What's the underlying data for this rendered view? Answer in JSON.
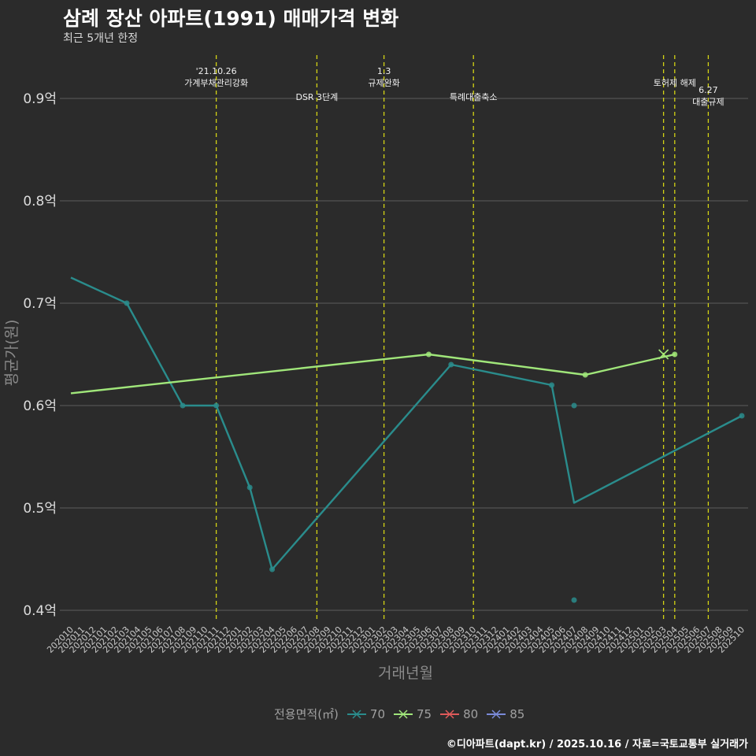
{
  "chart_data": {
    "type": "line",
    "title": "삼례 장산 아파트(1991) 매매가격 변화",
    "subtitle": "최근 5개년 한정",
    "xlabel": "거래년월",
    "ylabel": "평균가(원)",
    "ylim": [
      0.39,
      0.95
    ],
    "yticks": [
      {
        "value": 0.4,
        "label": "0.4억"
      },
      {
        "value": 0.5,
        "label": "0.5억"
      },
      {
        "value": 0.6,
        "label": "0.6억"
      },
      {
        "value": 0.7,
        "label": "0.7억"
      },
      {
        "value": 0.8,
        "label": "0.8억"
      },
      {
        "value": 0.9,
        "label": "0.9억"
      }
    ],
    "categories": [
      "202010",
      "202011",
      "202012",
      "202101",
      "202102",
      "202103",
      "202104",
      "202105",
      "202106",
      "202107",
      "202108",
      "202109",
      "202110",
      "202111",
      "202112",
      "202201",
      "202202",
      "202203",
      "202204",
      "202205",
      "202206",
      "202207",
      "202208",
      "202209",
      "202210",
      "202211",
      "202212",
      "202301",
      "202302",
      "202303",
      "202304",
      "202305",
      "202306",
      "202307",
      "202308",
      "202309",
      "202310",
      "202311",
      "202312",
      "202401",
      "202402",
      "202403",
      "202404",
      "202405",
      "202406",
      "202407",
      "202408",
      "202409",
      "202410",
      "202411",
      "202412",
      "202501",
      "202502",
      "202503",
      "202504",
      "202505",
      "202506",
      "202507",
      "202508",
      "202509",
      "202510"
    ],
    "series": [
      {
        "name": "70",
        "color": "#2a8c8c",
        "line": [
          {
            "x": "202010",
            "y": 0.725
          },
          {
            "x": "202103",
            "y": 0.7
          },
          {
            "x": "202108",
            "y": 0.6
          },
          {
            "x": "202111",
            "y": 0.6
          },
          {
            "x": "202202",
            "y": 0.52
          },
          {
            "x": "202204",
            "y": 0.44
          },
          {
            "x": "202308",
            "y": 0.64
          },
          {
            "x": "202405",
            "y": 0.62
          },
          {
            "x": "202407",
            "y": 0.505
          },
          {
            "x": "202510",
            "y": 0.59
          }
        ],
        "points": [
          {
            "x": "202103",
            "y": 0.7
          },
          {
            "x": "202108",
            "y": 0.6
          },
          {
            "x": "202111",
            "y": 0.6
          },
          {
            "x": "202202",
            "y": 0.52
          },
          {
            "x": "202204",
            "y": 0.44
          },
          {
            "x": "202308",
            "y": 0.64
          },
          {
            "x": "202405",
            "y": 0.62
          },
          {
            "x": "202407",
            "y": 0.6
          },
          {
            "x": "202407",
            "y": 0.41
          },
          {
            "x": "202510",
            "y": 0.59
          }
        ]
      },
      {
        "name": "75",
        "color": "#a0e67a",
        "line": [
          {
            "x": "202010",
            "y": 0.612
          },
          {
            "x": "202306",
            "y": 0.65
          },
          {
            "x": "202408",
            "y": 0.63
          },
          {
            "x": "202504",
            "y": 0.65
          }
        ],
        "points": [
          {
            "x": "202306",
            "y": 0.65
          },
          {
            "x": "202408",
            "y": 0.63
          },
          {
            "x": "202504",
            "y": 0.65
          }
        ],
        "cross_points": [
          {
            "x": "202503",
            "y": 0.65
          }
        ]
      },
      {
        "name": "80",
        "color": "#e05a5a",
        "line": [],
        "points": []
      },
      {
        "name": "85",
        "color": "#7a8ad8",
        "line": [],
        "points": []
      }
    ],
    "events": [
      {
        "x": "202111",
        "lines": [
          "'21.10.26",
          "가계부채관리강화"
        ],
        "row": 0
      },
      {
        "x": "202208",
        "lines": [
          "DSR 3단계"
        ],
        "row": 2
      },
      {
        "x": "202302",
        "lines": [
          "1.3",
          "규제완화"
        ],
        "row": 0
      },
      {
        "x": "202310",
        "lines": [
          "특례대출축소"
        ],
        "row": 2
      },
      {
        "x": "202503",
        "lines": [],
        "row": 0
      },
      {
        "x": "202504",
        "lines": [
          "토허제 해제"
        ],
        "row": 1
      },
      {
        "x": "202507",
        "lines": [
          "6.27",
          "대출규제"
        ],
        "row": 3
      }
    ],
    "legend_title": "전용면적(㎡)",
    "caption": "©디아파트(dapt.kr) / 2025.10.16 / 자료=국토교통부 실거래가"
  }
}
